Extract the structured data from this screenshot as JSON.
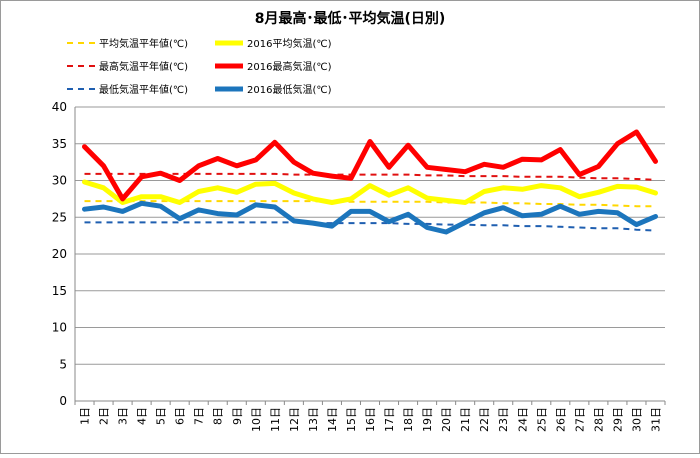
{
  "chart_data": {
    "type": "line",
    "title": "8月最高･最低･平均気温(日別)",
    "xlabel": "",
    "ylabel": "",
    "ylim": [
      0,
      40
    ],
    "yticks": [
      0,
      5,
      10,
      15,
      20,
      25,
      30,
      35,
      40
    ],
    "grid": "horizontal",
    "legend_position": "top",
    "categories": [
      "1日",
      "2日",
      "3日",
      "4日",
      "5日",
      "6日",
      "7日",
      "8日",
      "9日",
      "10日",
      "11日",
      "12日",
      "13日",
      "14日",
      "15日",
      "16日",
      "17日",
      "18日",
      "19日",
      "20日",
      "21日",
      "22日",
      "23日",
      "24日",
      "25日",
      "26日",
      "27日",
      "28日",
      "29日",
      "30日",
      "31日"
    ],
    "series": [
      {
        "name": "平均気温平年値(℃)",
        "color": "#FFD700",
        "style": "dashed",
        "values": [
          27.2,
          27.2,
          27.2,
          27.2,
          27.2,
          27.2,
          27.2,
          27.2,
          27.2,
          27.2,
          27.2,
          27.2,
          27.2,
          27.1,
          27.1,
          27.1,
          27.1,
          27.1,
          27.1,
          27.0,
          27.0,
          27.0,
          26.9,
          26.9,
          26.8,
          26.8,
          26.7,
          26.7,
          26.6,
          26.5,
          26.5
        ]
      },
      {
        "name": "2016平均気温(℃)",
        "color": "#FFFF00",
        "style": "solid",
        "values": [
          29.8,
          29.0,
          27.0,
          27.8,
          27.8,
          27.0,
          28.5,
          29.0,
          28.4,
          29.5,
          29.6,
          28.3,
          27.5,
          27.0,
          27.5,
          29.3,
          28.0,
          29.0,
          27.6,
          27.3,
          27.0,
          28.5,
          29.0,
          28.8,
          29.3,
          29.0,
          27.8,
          28.4,
          29.2,
          29.1,
          28.3
        ]
      },
      {
        "name": "最高気温平年値(℃)",
        "color": "#E01010",
        "style": "dashed",
        "values": [
          30.9,
          30.9,
          30.9,
          30.9,
          30.9,
          30.9,
          30.9,
          30.9,
          30.9,
          30.9,
          30.9,
          30.8,
          30.8,
          30.8,
          30.8,
          30.8,
          30.8,
          30.8,
          30.7,
          30.7,
          30.6,
          30.6,
          30.6,
          30.5,
          30.5,
          30.5,
          30.4,
          30.3,
          30.3,
          30.2,
          30.1
        ]
      },
      {
        "name": "2016最高気温(℃)",
        "color": "#FF0000",
        "style": "solid",
        "values": [
          34.6,
          32.0,
          27.5,
          30.5,
          31.0,
          30.0,
          32.0,
          33.0,
          32.0,
          32.8,
          35.2,
          32.5,
          31.0,
          30.6,
          30.3,
          35.3,
          31.8,
          34.8,
          31.8,
          31.5,
          31.2,
          32.2,
          31.8,
          32.9,
          32.8,
          34.2,
          30.8,
          31.9,
          35.0,
          36.6,
          32.6
        ]
      },
      {
        "name": "最低気温平年値(℃)",
        "color": "#1F5FB0",
        "style": "dashed",
        "values": [
          24.3,
          24.3,
          24.3,
          24.3,
          24.3,
          24.3,
          24.3,
          24.3,
          24.3,
          24.3,
          24.3,
          24.3,
          24.2,
          24.2,
          24.2,
          24.2,
          24.2,
          24.1,
          24.1,
          24.0,
          24.0,
          23.9,
          23.9,
          23.8,
          23.8,
          23.7,
          23.6,
          23.5,
          23.5,
          23.3,
          23.2
        ]
      },
      {
        "name": "2016最低気温(℃)",
        "color": "#1C75BC",
        "style": "solid",
        "values": [
          26.1,
          26.4,
          25.8,
          26.9,
          26.5,
          24.8,
          26.0,
          25.5,
          25.3,
          26.7,
          26.4,
          24.5,
          24.2,
          23.8,
          25.8,
          25.8,
          24.4,
          25.4,
          23.6,
          23.0,
          24.3,
          25.6,
          26.3,
          25.2,
          25.4,
          26.5,
          25.4,
          25.8,
          25.6,
          24.0,
          25.1
        ]
      }
    ]
  }
}
